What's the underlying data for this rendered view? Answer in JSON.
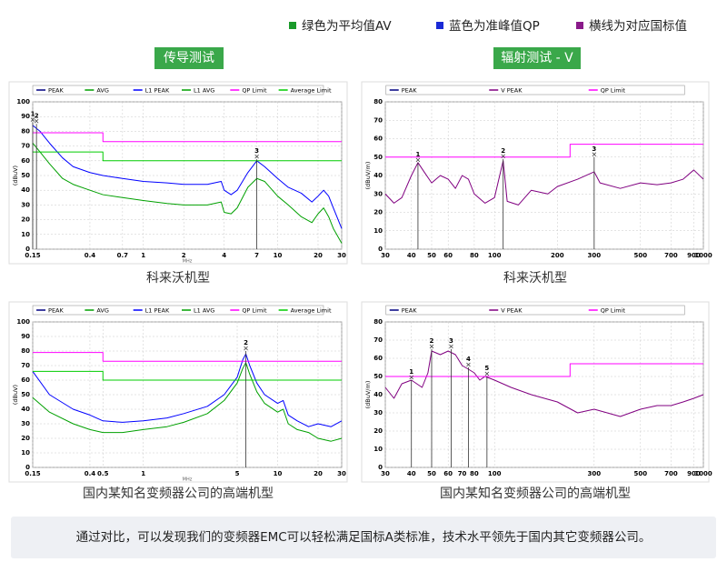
{
  "notes": [
    {
      "text": "绿色为平均值AV",
      "color": "#1a9a2a"
    },
    {
      "text": "蓝色为准峰值QP",
      "color": "#1a2ad6"
    },
    {
      "text": "横线为对应国标值",
      "color": "#8a1a8a"
    }
  ],
  "sections": [
    "传导测试",
    "辐射测试 - V"
  ],
  "footer": "通过对比，可以发现我们的变频器EMC可以轻松满足国标A类标准，技术水平领先于国内其它变频器公司。",
  "chart_data": [
    {
      "type": "line",
      "caption": "科来沃机型",
      "log_x": true,
      "grid": true,
      "y_label": "(dBuV)",
      "x_label": "MHz",
      "xlim": [
        0.15,
        30
      ],
      "xticks": [
        0.15,
        0.4,
        0.7,
        1,
        2,
        4,
        7,
        10,
        20,
        30
      ],
      "ylim": [
        0,
        100
      ],
      "yticks": [
        0,
        10,
        20,
        30,
        40,
        50,
        60,
        70,
        80,
        90,
        100
      ],
      "series": [
        {
          "name": "PEAK",
          "color": "#000080",
          "x": [],
          "values": []
        },
        {
          "name": "AVG",
          "color": "#00a000",
          "x": [],
          "values": []
        },
        {
          "name": "L1 PEAK",
          "color": "#0000ff",
          "x": [
            0.15,
            0.17,
            0.2,
            0.25,
            0.3,
            0.4,
            0.5,
            0.7,
            1,
            1.5,
            2,
            3,
            3.8,
            4,
            4.5,
            5,
            6,
            7,
            8,
            10,
            12,
            15,
            18,
            20,
            22,
            24,
            26,
            30
          ],
          "values": [
            84,
            80,
            72,
            62,
            56,
            52,
            50,
            48,
            46,
            45,
            44,
            44,
            46,
            40,
            37,
            40,
            52,
            60,
            56,
            48,
            42,
            38,
            32,
            36,
            40,
            36,
            28,
            14
          ]
        },
        {
          "name": "L1 AVG",
          "color": "#00a000",
          "x": [
            0.15,
            0.17,
            0.2,
            0.25,
            0.3,
            0.4,
            0.5,
            0.7,
            1,
            1.5,
            2,
            3,
            3.8,
            4,
            4.5,
            5,
            6,
            7,
            8,
            10,
            12,
            15,
            18,
            20,
            22,
            24,
            26,
            30
          ],
          "values": [
            72,
            66,
            58,
            48,
            44,
            40,
            37,
            35,
            33,
            31,
            30,
            30,
            32,
            25,
            24,
            28,
            42,
            48,
            46,
            36,
            30,
            22,
            18,
            24,
            28,
            22,
            14,
            4
          ]
        },
        {
          "name": "QP Limit",
          "color": "#ff00ff",
          "x": [
            0.15,
            0.5,
            0.5,
            30
          ],
          "values": [
            79,
            79,
            73,
            73
          ]
        },
        {
          "name": "Average Limit",
          "color": "#00cc00",
          "x": [
            0.15,
            0.5,
            0.5,
            30
          ],
          "values": [
            66,
            66,
            60,
            60
          ]
        }
      ],
      "markers": [
        {
          "label": "1",
          "x": 0.15,
          "value": 86
        },
        {
          "label": "2",
          "x": 0.16,
          "value": 85
        },
        {
          "label": "3",
          "x": 7,
          "value": 61
        }
      ]
    },
    {
      "type": "line",
      "caption": "科来沃机型",
      "log_x": true,
      "grid": true,
      "y_label": "(dBuV/m)",
      "xlim": [
        30,
        1000
      ],
      "xticks": [
        30,
        40,
        50,
        60,
        80,
        100,
        200,
        300,
        500,
        700,
        900,
        1000
      ],
      "ylim": [
        0,
        80
      ],
      "yticks": [
        0,
        10,
        20,
        30,
        40,
        50,
        60,
        70,
        80
      ],
      "series": [
        {
          "name": "PEAK",
          "color": "#000080",
          "x": [],
          "values": []
        },
        {
          "name": "V PEAK",
          "color": "#800080",
          "x": [
            30,
            33,
            36,
            40,
            43,
            46,
            50,
            55,
            60,
            65,
            70,
            75,
            80,
            90,
            100,
            110,
            115,
            130,
            150,
            180,
            200,
            250,
            300,
            320,
            400,
            500,
            600,
            700,
            800,
            900,
            1000
          ],
          "values": [
            30,
            25,
            28,
            40,
            47,
            42,
            36,
            40,
            38,
            33,
            40,
            38,
            30,
            25,
            28,
            48,
            26,
            24,
            32,
            30,
            34,
            38,
            42,
            36,
            33,
            36,
            35,
            36,
            38,
            43,
            38
          ]
        },
        {
          "name": "QP Limit",
          "color": "#ff00ff",
          "x": [
            30,
            230,
            230,
            1000
          ],
          "values": [
            50,
            50,
            57,
            57
          ]
        }
      ],
      "markers": [
        {
          "label": "1",
          "x": 43,
          "value": 47
        },
        {
          "label": "2",
          "x": 110,
          "value": 49
        },
        {
          "label": "3",
          "x": 300,
          "value": 50
        }
      ]
    },
    {
      "type": "line",
      "caption": "国内某知名变频器公司的高端机型",
      "log_x": true,
      "grid": true,
      "y_label": "(dBuV)",
      "x_label": "MHz",
      "xlim": [
        0.15,
        30
      ],
      "xticks": [
        0.15,
        0.4,
        0.5,
        1,
        5,
        10,
        20,
        30
      ],
      "ylim": [
        0,
        100
      ],
      "yticks": [
        0,
        10,
        20,
        30,
        40,
        50,
        60,
        70,
        80,
        90,
        100
      ],
      "series": [
        {
          "name": "PEAK",
          "color": "#000080",
          "x": [],
          "values": []
        },
        {
          "name": "AVG",
          "color": "#00a000",
          "x": [],
          "values": []
        },
        {
          "name": "L1 PEAK",
          "color": "#0000ff",
          "x": [
            0.15,
            0.2,
            0.3,
            0.4,
            0.5,
            0.7,
            1,
            1.5,
            2,
            3,
            4,
            5,
            5.5,
            5.8,
            6.2,
            7,
            8,
            10,
            11,
            12,
            14,
            17,
            20,
            25,
            30
          ],
          "values": [
            66,
            50,
            40,
            36,
            32,
            31,
            32,
            34,
            37,
            42,
            50,
            62,
            74,
            78,
            70,
            58,
            50,
            44,
            46,
            36,
            32,
            28,
            30,
            28,
            32
          ]
        },
        {
          "name": "L1 AVG",
          "color": "#00a000",
          "x": [
            0.15,
            0.2,
            0.3,
            0.4,
            0.5,
            0.7,
            1,
            1.5,
            2,
            3,
            4,
            5,
            5.5,
            5.8,
            6.2,
            7,
            8,
            10,
            11,
            12,
            14,
            17,
            20,
            25,
            30
          ],
          "values": [
            48,
            38,
            30,
            26,
            24,
            24,
            26,
            28,
            31,
            37,
            46,
            58,
            68,
            72,
            64,
            52,
            44,
            38,
            40,
            30,
            26,
            24,
            20,
            18,
            20
          ]
        },
        {
          "name": "QP Limit",
          "color": "#ff00ff",
          "x": [
            0.15,
            0.5,
            0.5,
            30
          ],
          "values": [
            79,
            79,
            73,
            73
          ]
        },
        {
          "name": "Average Limit",
          "color": "#00cc00",
          "x": [
            0.15,
            0.5,
            0.5,
            30
          ],
          "values": [
            66,
            66,
            60,
            60
          ]
        }
      ],
      "markers": [
        {
          "label": "2",
          "x": 5.8,
          "value": 80
        }
      ]
    },
    {
      "type": "line",
      "caption": "国内某知名变频器公司的高端机型",
      "log_x": true,
      "grid": true,
      "y_label": "(dBuV/m)",
      "xlim": [
        30,
        1000
      ],
      "xticks": [
        30,
        40,
        50,
        60,
        70,
        80,
        100,
        300,
        500,
        700,
        900,
        1000
      ],
      "ylim": [
        0,
        80
      ],
      "yticks": [
        0,
        10,
        20,
        30,
        40,
        50,
        60,
        70,
        80
      ],
      "series": [
        {
          "name": "PEAK",
          "color": "#000080",
          "x": [],
          "values": []
        },
        {
          "name": "V PEAK",
          "color": "#800080",
          "x": [
            30,
            33,
            36,
            40,
            45,
            48,
            50,
            55,
            60,
            65,
            70,
            75,
            80,
            85,
            90,
            95,
            100,
            120,
            150,
            200,
            250,
            300,
            400,
            500,
            600,
            700,
            800,
            900,
            1000
          ],
          "values": [
            44,
            38,
            46,
            48,
            44,
            52,
            64,
            62,
            64,
            62,
            56,
            54,
            52,
            48,
            50,
            49,
            48,
            44,
            40,
            36,
            30,
            32,
            28,
            32,
            34,
            34,
            36,
            38,
            40
          ]
        },
        {
          "name": "QP Limit",
          "color": "#ff00ff",
          "x": [
            30,
            230,
            230,
            1000
          ],
          "values": [
            50,
            50,
            57,
            57
          ]
        }
      ],
      "markers": [
        {
          "label": "1",
          "x": 40,
          "value": 48
        },
        {
          "label": "2",
          "x": 50,
          "value": 65
        },
        {
          "label": "3",
          "x": 62,
          "value": 65
        },
        {
          "label": "4",
          "x": 75,
          "value": 55
        },
        {
          "label": "5",
          "x": 92,
          "value": 50
        }
      ]
    }
  ]
}
